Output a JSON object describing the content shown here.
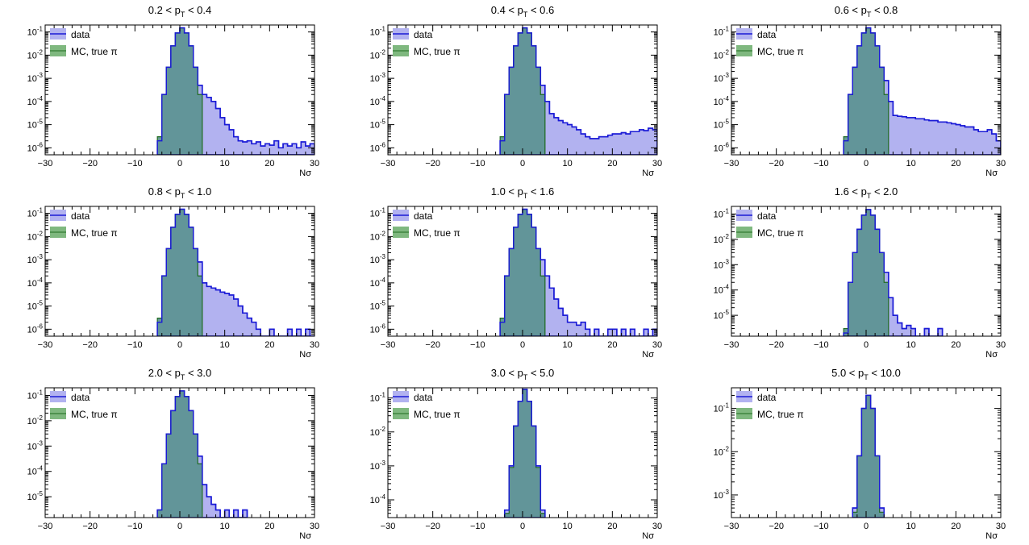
{
  "colors": {
    "data_fill": "#b2b2f0",
    "data_line": "#1a1ad6",
    "mc_fill": "#7fb87f",
    "mc_line": "#1f6b1f",
    "overlap_fill": "#5e9393"
  },
  "chart_data": [
    {
      "type": "histogram",
      "title": "0.2 < p_T < 0.4",
      "xlabel": "Nσ",
      "xlim": [
        -30,
        30
      ],
      "yscale": "log",
      "ylim": [
        5e-07,
        0.2
      ],
      "ytick_labels": [
        "10^-1",
        "10^-2",
        "10^-3",
        "10^-4",
        "10^-5",
        "10^-6"
      ],
      "xtick_labels": [
        "−30",
        "−20",
        "−10",
        "0",
        "10",
        "20",
        "30"
      ],
      "legend": [
        "data",
        "MC, true π"
      ],
      "legend_position": "top-left",
      "series": [
        {
          "name": "data",
          "x": [
            -5,
            -4,
            -3,
            -2,
            -1,
            0,
            1,
            2,
            3,
            4,
            5,
            6,
            7,
            8,
            9,
            10,
            11,
            12,
            13,
            14,
            15,
            16,
            17,
            18,
            19,
            20,
            21,
            22,
            23,
            24,
            25,
            26,
            27,
            28,
            29
          ],
          "y": [
            2e-06,
            0.0002,
            0.003,
            0.025,
            0.09,
            0.15,
            0.09,
            0.025,
            0.003,
            0.0005,
            0.0002,
            0.00015,
            0.0001,
            5e-05,
            2e-05,
            1e-05,
            6e-06,
            3e-06,
            2e-06,
            1.8e-06,
            2e-06,
            1.5e-06,
            1.8e-06,
            1.2e-06,
            1.5e-06,
            1.3e-06,
            2e-06,
            1e-06,
            1.5e-06,
            1.2e-06,
            1.5e-06,
            1e-06,
            1.8e-06,
            1.2e-06,
            1.5e-06
          ]
        },
        {
          "name": "MC, true π",
          "x": [
            -5,
            -4,
            -3,
            -2,
            -1,
            0,
            1,
            2,
            3,
            4
          ],
          "y": [
            3e-06,
            0.0002,
            0.003,
            0.025,
            0.09,
            0.15,
            0.09,
            0.025,
            0.003,
            0.0002
          ]
        }
      ]
    },
    {
      "type": "histogram",
      "title": "0.4 < p_T < 0.6",
      "xlabel": "Nσ",
      "xlim": [
        -30,
        30
      ],
      "yscale": "log",
      "ylim": [
        5e-07,
        0.2
      ],
      "ytick_labels": [
        "10^-1",
        "10^-2",
        "10^-3",
        "10^-4",
        "10^-5",
        "10^-6"
      ],
      "xtick_labels": [
        "−30",
        "−20",
        "−10",
        "0",
        "10",
        "20",
        "30"
      ],
      "legend": [
        "data",
        "MC, true π"
      ],
      "legend_position": "top-left",
      "series": [
        {
          "name": "data",
          "x": [
            -5,
            -4,
            -3,
            -2,
            -1,
            0,
            1,
            2,
            3,
            4,
            5,
            6,
            7,
            8,
            9,
            10,
            11,
            12,
            13,
            14,
            15,
            16,
            17,
            18,
            19,
            20,
            21,
            22,
            23,
            24,
            25,
            26,
            27,
            28,
            29
          ],
          "y": [
            2e-06,
            0.0002,
            0.003,
            0.025,
            0.09,
            0.15,
            0.09,
            0.025,
            0.003,
            0.0005,
            0.0001,
            3e-05,
            2e-05,
            1.5e-05,
            1.2e-05,
            1e-05,
            8e-06,
            6e-06,
            4e-06,
            3e-06,
            2.5e-06,
            2.5e-06,
            3e-06,
            3e-06,
            3.5e-06,
            4e-06,
            4e-06,
            4.5e-06,
            4e-06,
            5e-06,
            5e-06,
            6e-06,
            5.5e-06,
            7e-06,
            6e-06
          ]
        },
        {
          "name": "MC, true π",
          "x": [
            -5,
            -4,
            -3,
            -2,
            -1,
            0,
            1,
            2,
            3,
            4
          ],
          "y": [
            3e-06,
            0.0002,
            0.003,
            0.025,
            0.09,
            0.15,
            0.09,
            0.025,
            0.003,
            0.0002
          ]
        }
      ]
    },
    {
      "type": "histogram",
      "title": "0.6 < p_T < 0.8",
      "xlabel": "Nσ",
      "xlim": [
        -30,
        30
      ],
      "yscale": "log",
      "ylim": [
        5e-07,
        0.2
      ],
      "ytick_labels": [
        "10^-1",
        "10^-2",
        "10^-3",
        "10^-4",
        "10^-5",
        "10^-6"
      ],
      "xtick_labels": [
        "−30",
        "−20",
        "−10",
        "0",
        "10",
        "20",
        "30"
      ],
      "legend": [
        "data",
        "MC, true π"
      ],
      "legend_position": "top-left",
      "series": [
        {
          "name": "data",
          "x": [
            -5,
            -4,
            -3,
            -2,
            -1,
            0,
            1,
            2,
            3,
            4,
            5,
            6,
            7,
            8,
            9,
            10,
            11,
            12,
            13,
            14,
            15,
            16,
            17,
            18,
            19,
            20,
            21,
            22,
            23,
            24,
            25,
            26,
            27,
            28,
            29
          ],
          "y": [
            2e-06,
            0.0002,
            0.003,
            0.025,
            0.09,
            0.15,
            0.09,
            0.025,
            0.003,
            0.0008,
            0.0001,
            2.5e-05,
            2.3e-05,
            2.2e-05,
            2e-05,
            2e-05,
            1.8e-05,
            1.8e-05,
            1.6e-05,
            1.5e-05,
            1.5e-05,
            1.3e-05,
            1.3e-05,
            1.2e-05,
            1.1e-05,
            1e-05,
            9e-06,
            8e-06,
            8e-06,
            6e-06,
            5e-06,
            5e-06,
            6e-06,
            4e-06,
            2e-06
          ]
        },
        {
          "name": "MC, true π",
          "x": [
            -5,
            -4,
            -3,
            -2,
            -1,
            0,
            1,
            2,
            3,
            4
          ],
          "y": [
            3e-06,
            0.0002,
            0.003,
            0.025,
            0.09,
            0.15,
            0.09,
            0.025,
            0.003,
            0.0002
          ]
        }
      ]
    },
    {
      "type": "histogram",
      "title": "0.8 < p_T < 1.0",
      "xlabel": "Nσ",
      "xlim": [
        -30,
        30
      ],
      "yscale": "log",
      "ylim": [
        5e-07,
        0.2
      ],
      "ytick_labels": [
        "10^-1",
        "10^-2",
        "10^-3",
        "10^-4",
        "10^-5",
        "10^-6"
      ],
      "xtick_labels": [
        "−30",
        "−20",
        "−10",
        "0",
        "10",
        "20",
        "30"
      ],
      "legend": [
        "data",
        "MC, true π"
      ],
      "legend_position": "top-left",
      "series": [
        {
          "name": "data",
          "x": [
            -5,
            -4,
            -3,
            -2,
            -1,
            0,
            1,
            2,
            3,
            4,
            5,
            6,
            7,
            8,
            9,
            10,
            11,
            12,
            13,
            14,
            15,
            16,
            17,
            18,
            19,
            20,
            21,
            22,
            23,
            24,
            25,
            26,
            27,
            28,
            29
          ],
          "y": [
            2e-06,
            0.0002,
            0.003,
            0.025,
            0.09,
            0.15,
            0.09,
            0.025,
            0.003,
            0.0008,
            0.0001,
            7e-05,
            6e-05,
            5e-05,
            4e-05,
            3.5e-05,
            3e-05,
            2e-05,
            1e-05,
            5e-06,
            3e-06,
            2e-06,
            1e-06,
            0,
            0,
            1e-06,
            0,
            0,
            0,
            1e-06,
            0,
            1e-06,
            0,
            1e-06,
            0
          ]
        },
        {
          "name": "MC, true π",
          "x": [
            -5,
            -4,
            -3,
            -2,
            -1,
            0,
            1,
            2,
            3,
            4
          ],
          "y": [
            3e-06,
            0.0002,
            0.003,
            0.025,
            0.09,
            0.15,
            0.09,
            0.025,
            0.003,
            0.0002
          ]
        }
      ]
    },
    {
      "type": "histogram",
      "title": "1.0 < p_T < 1.6",
      "xlabel": "Nσ",
      "xlim": [
        -30,
        30
      ],
      "yscale": "log",
      "ylim": [
        5e-07,
        0.2
      ],
      "ytick_labels": [
        "10^-1",
        "10^-2",
        "10^-3",
        "10^-4",
        "10^-5",
        "10^-6"
      ],
      "xtick_labels": [
        "−30",
        "−20",
        "−10",
        "0",
        "10",
        "20",
        "30"
      ],
      "legend": [
        "data",
        "MC, true π"
      ],
      "legend_position": "top-left",
      "series": [
        {
          "name": "data",
          "x": [
            -5,
            -4,
            -3,
            -2,
            -1,
            0,
            1,
            2,
            3,
            4,
            5,
            6,
            7,
            8,
            9,
            10,
            11,
            12,
            13,
            14,
            15,
            16,
            17,
            18,
            19,
            20,
            21,
            22,
            23,
            24,
            25,
            26,
            27,
            28,
            29
          ],
          "y": [
            2e-06,
            0.0002,
            0.003,
            0.025,
            0.09,
            0.15,
            0.09,
            0.025,
            0.003,
            0.001,
            0.0002,
            6e-05,
            2e-05,
            8e-06,
            4e-06,
            2e-06,
            2e-06,
            1.5e-06,
            2e-06,
            1e-06,
            0,
            1e-06,
            0,
            0,
            1e-06,
            1e-06,
            0,
            1e-06,
            0,
            1e-06,
            0,
            0,
            1e-06,
            0,
            1e-06
          ]
        },
        {
          "name": "MC, true π",
          "x": [
            -5,
            -4,
            -3,
            -2,
            -1,
            0,
            1,
            2,
            3,
            4
          ],
          "y": [
            3e-06,
            0.0002,
            0.003,
            0.025,
            0.09,
            0.15,
            0.09,
            0.025,
            0.003,
            0.0002
          ]
        }
      ]
    },
    {
      "type": "histogram",
      "title": "1.6 < p_T < 2.0",
      "xlabel": "Nσ",
      "xlim": [
        -30,
        30
      ],
      "yscale": "log",
      "ylim": [
        1.5e-06,
        0.2
      ],
      "ytick_labels": [
        "10^-1",
        "10^-2",
        "10^-3",
        "10^-4",
        "10^-5"
      ],
      "xtick_labels": [
        "−30",
        "−20",
        "−10",
        "0",
        "10",
        "20",
        "30"
      ],
      "legend": [
        "data",
        "MC, true π"
      ],
      "legend_position": "top-left",
      "series": [
        {
          "name": "data",
          "x": [
            -5,
            -4,
            -3,
            -2,
            -1,
            0,
            1,
            2,
            3,
            4,
            5,
            6,
            7,
            8,
            9,
            10,
            11,
            12,
            13,
            14,
            15,
            16
          ],
          "y": [
            2e-06,
            0.0002,
            0.003,
            0.025,
            0.09,
            0.15,
            0.09,
            0.025,
            0.003,
            0.0005,
            5e-05,
            1e-05,
            5e-06,
            3e-06,
            4e-06,
            3e-06,
            0,
            0,
            3e-06,
            0,
            0,
            3e-06
          ]
        },
        {
          "name": "MC, true π",
          "x": [
            -5,
            -4,
            -3,
            -2,
            -1,
            0,
            1,
            2,
            3,
            4
          ],
          "y": [
            3e-06,
            0.0002,
            0.003,
            0.025,
            0.09,
            0.15,
            0.09,
            0.025,
            0.003,
            0.0002
          ]
        }
      ]
    },
    {
      "type": "histogram",
      "title": "2.0 < p_T < 3.0",
      "xlabel": "Nσ",
      "xlim": [
        -30,
        30
      ],
      "yscale": "log",
      "ylim": [
        1.5e-06,
        0.2
      ],
      "ytick_labels": [
        "10^-1",
        "10^-2",
        "10^-3",
        "10^-4",
        "10^-5"
      ],
      "xtick_labels": [
        "−30",
        "−20",
        "−10",
        "0",
        "10",
        "20",
        "30"
      ],
      "legend": [
        "data",
        "MC, true π"
      ],
      "legend_position": "top-left",
      "series": [
        {
          "name": "data",
          "x": [
            -5,
            -4,
            -3,
            -2,
            -1,
            0,
            1,
            2,
            3,
            4,
            5,
            6,
            7,
            8,
            9,
            10,
            11,
            12,
            13,
            14
          ],
          "y": [
            3e-06,
            0.0002,
            0.003,
            0.025,
            0.09,
            0.15,
            0.09,
            0.025,
            0.003,
            0.0004,
            3e-05,
            1e-05,
            5e-06,
            3e-06,
            0,
            3e-06,
            0,
            3e-06,
            0,
            3e-06
          ]
        },
        {
          "name": "MC, true π",
          "x": [
            -5,
            -4,
            -3,
            -2,
            -1,
            0,
            1,
            2,
            3,
            4
          ],
          "y": [
            3e-06,
            0.0002,
            0.003,
            0.025,
            0.09,
            0.15,
            0.09,
            0.025,
            0.003,
            0.0002
          ]
        }
      ]
    },
    {
      "type": "histogram",
      "title": "3.0 < p_T < 5.0",
      "xlabel": "Nσ",
      "xlim": [
        -30,
        30
      ],
      "yscale": "log",
      "ylim": [
        3e-05,
        0.2
      ],
      "ytick_labels": [
        "10^-1",
        "10^-2",
        "10^-3",
        "10^-4"
      ],
      "xtick_labels": [
        "−30",
        "−20",
        "−10",
        "0",
        "10",
        "20",
        "30"
      ],
      "legend": [
        "data",
        "MC, true π"
      ],
      "legend_position": "top-left",
      "series": [
        {
          "name": "data",
          "x": [
            -4,
            -3,
            -2,
            -1,
            0,
            1,
            2,
            3,
            4
          ],
          "y": [
            5e-05,
            0.001,
            0.015,
            0.08,
            0.18,
            0.08,
            0.015,
            0.001,
            5e-05
          ]
        },
        {
          "name": "MC, true π",
          "x": [
            -4,
            -3,
            -2,
            -1,
            0,
            1,
            2,
            3,
            4
          ],
          "y": [
            4e-05,
            0.0009,
            0.015,
            0.08,
            0.18,
            0.08,
            0.015,
            0.0009,
            4e-05
          ]
        }
      ]
    },
    {
      "type": "histogram",
      "title": "5.0 < p_T < 10.0",
      "xlabel": "Nσ",
      "xlim": [
        -30,
        30
      ],
      "yscale": "log",
      "ylim": [
        0.0003,
        0.3
      ],
      "ytick_labels": [
        "10^-1",
        "10^-2",
        "10^-3"
      ],
      "xtick_labels": [
        "−30",
        "−20",
        "−10",
        "0",
        "10",
        "20",
        "30"
      ],
      "legend": [
        "data",
        "MC, true π"
      ],
      "legend_position": "top-left",
      "series": [
        {
          "name": "data",
          "x": [
            -3,
            -2,
            -1,
            0,
            1,
            2,
            3
          ],
          "y": [
            0.0005,
            0.008,
            0.1,
            0.2,
            0.1,
            0.008,
            0.0005
          ]
        },
        {
          "name": "MC, true π",
          "x": [
            -3,
            -2,
            -1,
            0,
            1,
            2,
            3
          ],
          "y": [
            0.0004,
            0.008,
            0.1,
            0.2,
            0.1,
            0.008,
            0.0004
          ]
        }
      ]
    }
  ]
}
